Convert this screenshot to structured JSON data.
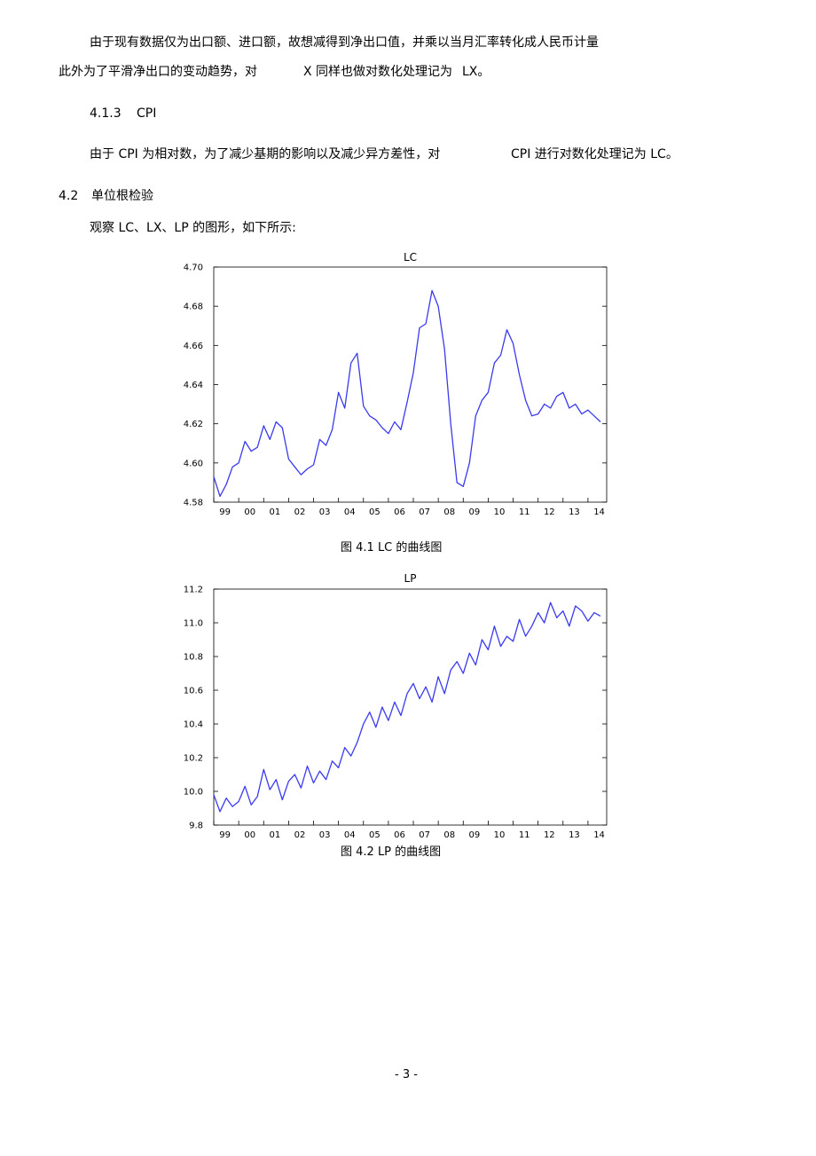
{
  "paragraphs": {
    "p1": "由于现有数据仅为出口额、进口额，故想减得到净出口值，并乘以当月汇率转化成人民币计量",
    "p2a": "此外为了平滑净出口的变动趋势，对",
    "p2b": "X 同样也做对数化处理记为",
    "p2c": "LX。",
    "h413": "4.1.3",
    "h413_title": "CPI",
    "p3a": "由于 CPI 为相对数，为了减少基期的影响以及减少异方差性，对",
    "p3b": "CPI 进行对数化处理记为 LC。",
    "h42": "4.2",
    "h42_title": "单位根检验",
    "p4": "观察 LC、LX、LP 的图形，如下所示:"
  },
  "captions": {
    "fig1": "图 4.1 LC 的曲线图",
    "fig2": "图 4.2 LP 的曲线图"
  },
  "page_number": "- 3 -",
  "colors": {
    "line": "#3a3aee",
    "axis": "#000000"
  },
  "chart_data": [
    {
      "type": "line",
      "title": "LC",
      "ylim": [
        4.58,
        4.7
      ],
      "yticks": [
        "4.70",
        "4.68",
        "4.66",
        "4.64",
        "4.62",
        "4.60",
        "4.58"
      ],
      "ytick_values": [
        4.7,
        4.68,
        4.66,
        4.64,
        4.62,
        4.6,
        4.58
      ],
      "xticks": [
        "99",
        "00",
        "01",
        "02",
        "03",
        "04",
        "05",
        "06",
        "07",
        "08",
        "09",
        "10",
        "11",
        "12",
        "13",
        "14"
      ],
      "xlim": [
        1999.0,
        2014.75
      ],
      "grid": false,
      "series": [
        {
          "x": [
            1999.0,
            1999.25,
            1999.5,
            1999.75,
            2000.0,
            2000.25,
            2000.5,
            2000.75,
            2001.0,
            2001.25,
            2001.5,
            2001.75,
            2002.0,
            2002.25,
            2002.5,
            2002.75,
            2003.0,
            2003.25,
            2003.5,
            2003.75,
            2004.0,
            2004.25,
            2004.5,
            2004.75,
            2005.0,
            2005.25,
            2005.5,
            2005.75,
            2006.0,
            2006.25,
            2006.5,
            2006.75,
            2007.0,
            2007.25,
            2007.5,
            2007.75,
            2008.0,
            2008.25,
            2008.5,
            2008.75,
            2009.0,
            2009.25,
            2009.5,
            2009.75,
            2010.0,
            2010.25,
            2010.5,
            2010.75,
            2011.0,
            2011.25,
            2011.5,
            2011.75,
            2012.0,
            2012.25,
            2012.5,
            2012.75,
            2013.0,
            2013.25,
            2013.5,
            2013.75,
            2014.0,
            2014.25,
            2014.5
          ],
          "values": [
            4.593,
            4.583,
            4.589,
            4.598,
            4.6,
            4.611,
            4.606,
            4.608,
            4.619,
            4.612,
            4.621,
            4.618,
            4.602,
            4.598,
            4.594,
            4.597,
            4.599,
            4.612,
            4.609,
            4.617,
            4.636,
            4.628,
            4.651,
            4.656,
            4.629,
            4.624,
            4.622,
            4.618,
            4.615,
            4.621,
            4.617,
            4.631,
            4.646,
            4.669,
            4.671,
            4.688,
            4.68,
            4.658,
            4.62,
            4.59,
            4.588,
            4.6,
            4.624,
            4.632,
            4.636,
            4.651,
            4.655,
            4.668,
            4.661,
            4.645,
            4.632,
            4.624,
            4.625,
            4.63,
            4.628,
            4.634,
            4.636,
            4.628,
            4.63,
            4.625,
            4.627,
            4.624,
            4.621
          ]
        }
      ]
    },
    {
      "type": "line",
      "title": "LP",
      "ylim": [
        9.8,
        11.2
      ],
      "yticks": [
        "11.2",
        "11.0",
        "10.8",
        "10.6",
        "10.4",
        "10.2",
        "10.0",
        "9.8"
      ],
      "ytick_values": [
        11.2,
        11.0,
        10.8,
        10.6,
        10.4,
        10.2,
        10.0,
        9.8
      ],
      "xticks": [
        "99",
        "00",
        "01",
        "02",
        "03",
        "04",
        "05",
        "06",
        "07",
        "08",
        "09",
        "10",
        "11",
        "12",
        "13",
        "14"
      ],
      "xlim": [
        1999.0,
        2014.75
      ],
      "grid": false,
      "series": [
        {
          "x": [
            1999.0,
            1999.25,
            1999.5,
            1999.75,
            2000.0,
            2000.25,
            2000.5,
            2000.75,
            2001.0,
            2001.25,
            2001.5,
            2001.75,
            2002.0,
            2002.25,
            2002.5,
            2002.75,
            2003.0,
            2003.25,
            2003.5,
            2003.75,
            2004.0,
            2004.25,
            2004.5,
            2004.75,
            2005.0,
            2005.25,
            2005.5,
            2005.75,
            2006.0,
            2006.25,
            2006.5,
            2006.75,
            2007.0,
            2007.25,
            2007.5,
            2007.75,
            2008.0,
            2008.25,
            2008.5,
            2008.75,
            2009.0,
            2009.25,
            2009.5,
            2009.75,
            2010.0,
            2010.25,
            2010.5,
            2010.75,
            2011.0,
            2011.25,
            2011.5,
            2011.75,
            2012.0,
            2012.25,
            2012.5,
            2012.75,
            2013.0,
            2013.25,
            2013.5,
            2013.75,
            2014.0,
            2014.25,
            2014.5
          ],
          "values": [
            9.98,
            9.88,
            9.96,
            9.91,
            9.94,
            10.03,
            9.92,
            9.97,
            10.13,
            10.01,
            10.07,
            9.95,
            10.06,
            10.1,
            10.02,
            10.15,
            10.05,
            10.12,
            10.07,
            10.18,
            10.14,
            10.26,
            10.21,
            10.29,
            10.4,
            10.47,
            10.38,
            10.5,
            10.42,
            10.53,
            10.45,
            10.58,
            10.64,
            10.55,
            10.62,
            10.53,
            10.68,
            10.58,
            10.72,
            10.77,
            10.7,
            10.82,
            10.75,
            10.9,
            10.84,
            10.98,
            10.86,
            10.92,
            10.89,
            11.02,
            10.92,
            10.98,
            11.06,
            11.0,
            11.12,
            11.03,
            11.07,
            10.98,
            11.1,
            11.07,
            11.01,
            11.06,
            11.04
          ]
        }
      ]
    }
  ]
}
